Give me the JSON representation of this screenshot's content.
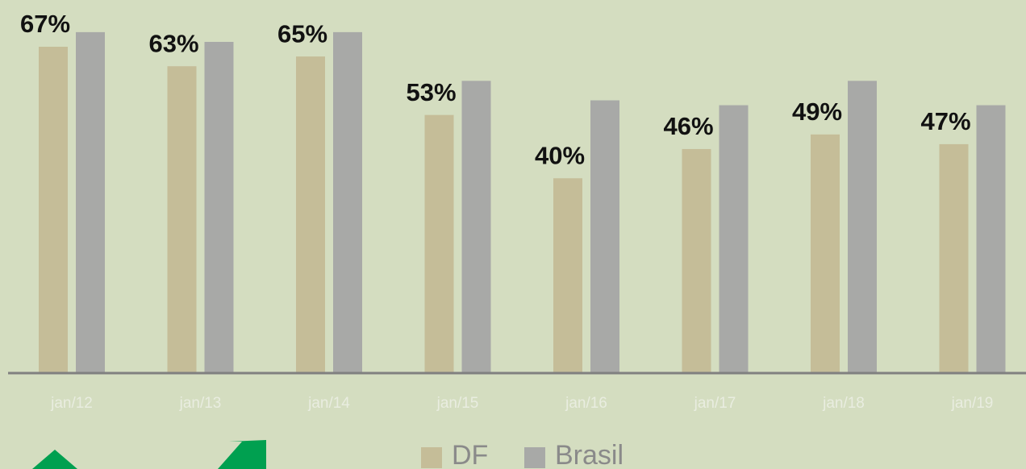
{
  "chart_data": {
    "type": "bar",
    "categories": [
      "jan/12",
      "jan/13",
      "jan/14",
      "jan/15",
      "jan/16",
      "jan/17",
      "jan/18",
      "jan/19"
    ],
    "series": [
      {
        "name": "DF",
        "color": "#c5bd98",
        "values": [
          67,
          63,
          65,
          53,
          40,
          46,
          49,
          47
        ],
        "value_labels": [
          "67%",
          "63%",
          "65%",
          "53%",
          "40%",
          "46%",
          "49%",
          "47%"
        ]
      },
      {
        "name": "Brasil",
        "color": "#a8a9a7",
        "values": [
          70,
          68,
          70,
          60,
          56,
          55,
          60,
          55
        ]
      }
    ],
    "ylim": [
      0,
      76.6
    ]
  }
}
